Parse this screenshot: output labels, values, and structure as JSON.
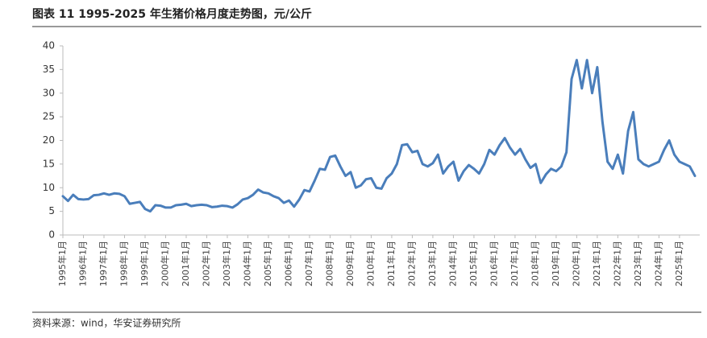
{
  "chart_data": {
    "type": "line",
    "title": "图表 11 1995-2025 年生猪价格月度走势图，元/公斤",
    "source": "资料来源：wind，华安证券研究所",
    "categories": [
      "1995年1月",
      null,
      null,
      null,
      "1996年1月",
      null,
      null,
      null,
      "1997年1月",
      null,
      null,
      null,
      "1998年1月",
      null,
      null,
      null,
      "1999年1月",
      null,
      null,
      null,
      "2000年1月",
      null,
      null,
      null,
      "2001年1月",
      null,
      null,
      null,
      "2002年1月",
      null,
      null,
      null,
      "2003年1月",
      null,
      null,
      null,
      "2004年1月",
      null,
      null,
      null,
      "2005年1月",
      null,
      null,
      null,
      "2006年1月",
      null,
      null,
      null,
      "2007年1月",
      null,
      null,
      null,
      "2008年1月",
      null,
      null,
      null,
      "2009年1月",
      null,
      null,
      null,
      "2010年1月",
      null,
      null,
      null,
      "2011年1月",
      null,
      null,
      null,
      "2012年1月",
      null,
      null,
      null,
      "2013年1月",
      null,
      null,
      null,
      "2014年1月",
      null,
      null,
      null,
      "2015年1月",
      null,
      null,
      null,
      "2016年1月",
      null,
      null,
      null,
      "2017年1月",
      null,
      null,
      null,
      "2018年1月",
      null,
      null,
      null,
      "2019年1月",
      null,
      null,
      null,
      "2020年1月",
      null,
      null,
      null,
      "2021年1月",
      null,
      null,
      null,
      "2022年1月",
      null,
      null,
      null,
      "2023年1月",
      null,
      null,
      null,
      "2024年1月",
      null,
      null,
      null,
      "2025年1月",
      null,
      null,
      null
    ],
    "series": [
      {
        "name": "生猪价格",
        "color": "#4a7ebb",
        "values": [
          8.2,
          7.2,
          8.5,
          7.6,
          7.5,
          7.6,
          8.4,
          8.5,
          8.8,
          8.5,
          8.8,
          8.7,
          8.2,
          6.6,
          6.8,
          7.0,
          5.5,
          5.0,
          6.3,
          6.2,
          5.8,
          5.8,
          6.3,
          6.4,
          6.6,
          6.1,
          6.3,
          6.4,
          6.3,
          5.9,
          6.0,
          6.2,
          6.1,
          5.8,
          6.5,
          7.5,
          7.8,
          8.5,
          9.6,
          9.0,
          8.8,
          8.2,
          7.8,
          6.8,
          7.3,
          6.0,
          7.5,
          9.5,
          9.2,
          11.5,
          14.0,
          13.8,
          16.5,
          16.8,
          14.5,
          12.5,
          13.3,
          10.0,
          10.5,
          11.8,
          12.0,
          10.0,
          9.8,
          12.0,
          13.0,
          15.0,
          19.0,
          19.2,
          17.5,
          17.8,
          15.0,
          14.5,
          15.2,
          17.0,
          13.0,
          14.5,
          15.5,
          11.5,
          13.5,
          14.8,
          14.0,
          13.0,
          15.0,
          18.0,
          17.0,
          19.0,
          20.5,
          18.5,
          17.0,
          18.2,
          16.0,
          14.2,
          15.0,
          11.0,
          12.8,
          14.0,
          13.5,
          14.5,
          17.5,
          33.0,
          37.0,
          31.0,
          37.0,
          30.0,
          35.5,
          24.0,
          15.5,
          14.0,
          17.0,
          13.0,
          22.0,
          26.0,
          16.0,
          15.0,
          14.5,
          15.0,
          15.5,
          18.0,
          20.0,
          17.0,
          15.5,
          15.0,
          14.5,
          12.5
        ]
      }
    ],
    "ylim": [
      0,
      40
    ],
    "yticks": [
      0,
      5,
      10,
      15,
      20,
      25,
      30,
      35,
      40
    ],
    "grid": false
  }
}
